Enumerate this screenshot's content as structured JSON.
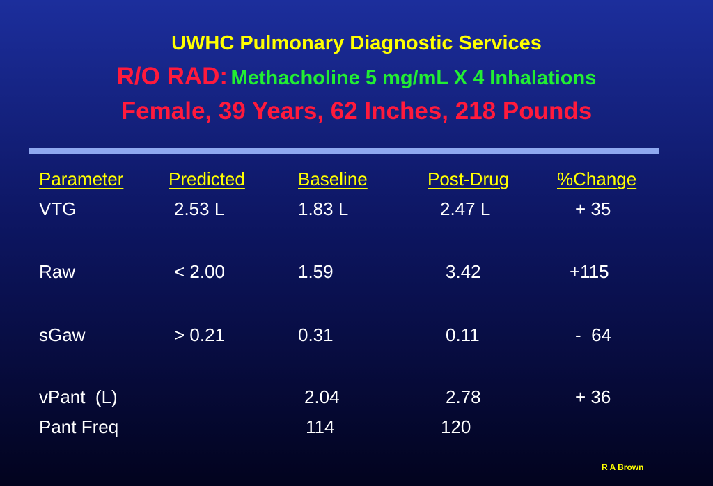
{
  "header": {
    "title": "UWHC Pulmonary Diagnostic Services",
    "condition": "R/O RAD:",
    "protocol": "Methacholine 5 mg/mL X 4 Inhalations",
    "patient": "Female, 39 Years, 62 Inches, 218 Pounds"
  },
  "table": {
    "columns": [
      "Parameter",
      "Predicted",
      "Baseline",
      "Post-Drug",
      "%Change"
    ],
    "rows": [
      [
        "VTG",
        "2.53 L",
        "1.83 L",
        "2.47 L",
        "+ 35"
      ],
      [
        "Raw",
        "< 2.00",
        "1.59",
        "3.42",
        "+115"
      ],
      [
        "sGaw",
        "> 0.21",
        "0.31",
        "0.11",
        "-  64"
      ],
      [
        "vPant  (L)",
        null,
        "2.04",
        "2.78",
        "+ 36"
      ],
      [
        "Pant Freq",
        null,
        "114",
        "120",
        null
      ]
    ]
  },
  "footer": {
    "author": "R A Brown"
  }
}
